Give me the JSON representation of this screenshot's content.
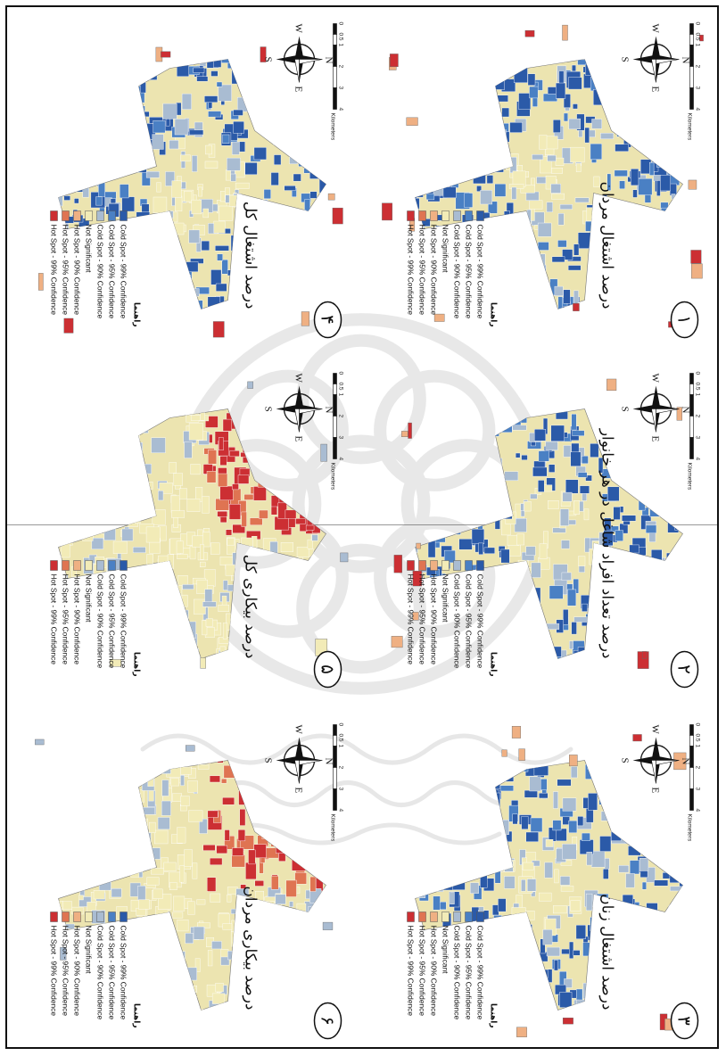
{
  "legend": {
    "heading": "راهنما",
    "items": [
      {
        "label": "Cold Spot - 99% Confidence",
        "color": "#2b5aa8"
      },
      {
        "label": "Cold Spot - 95% Confidence",
        "color": "#4a80c4"
      },
      {
        "label": "Cold Spot - 90% Confidence",
        "color": "#a9bcd2"
      },
      {
        "label": "Not Significant",
        "color": "#f2ebb7"
      },
      {
        "label": "Hot Spot - 90% Confidence",
        "color": "#efb083"
      },
      {
        "label": "Hot Spot - 95% Confidence",
        "color": "#df7452"
      },
      {
        "label": "Hot Spot - 99% Confidence",
        "color": "#cc2f33"
      }
    ]
  },
  "compass": {
    "n": "N",
    "s": "S",
    "e": "E",
    "w": "W"
  },
  "scale": {
    "ticks": [
      "0",
      "0.5",
      "1",
      "2",
      "3",
      "4"
    ],
    "unit": "Kilometers"
  },
  "panels": [
    {
      "number": "۱",
      "title": "درصد اشتغال مردان",
      "scheme": "cold"
    },
    {
      "number": "۲",
      "title": "درصد تعداد افراد شاغل در هر خانوار",
      "scheme": "cold"
    },
    {
      "number": "۳",
      "title": "درصد اشتغال زنان",
      "scheme": "cold"
    },
    {
      "number": "۴",
      "title": "درصد اشتغال کل",
      "scheme": "cold"
    },
    {
      "number": "۵",
      "title": "درصد بیکاری کل",
      "scheme": "hot"
    },
    {
      "number": "۶",
      "title": "درصد بیکاری مردان",
      "scheme": "hot"
    }
  ]
}
